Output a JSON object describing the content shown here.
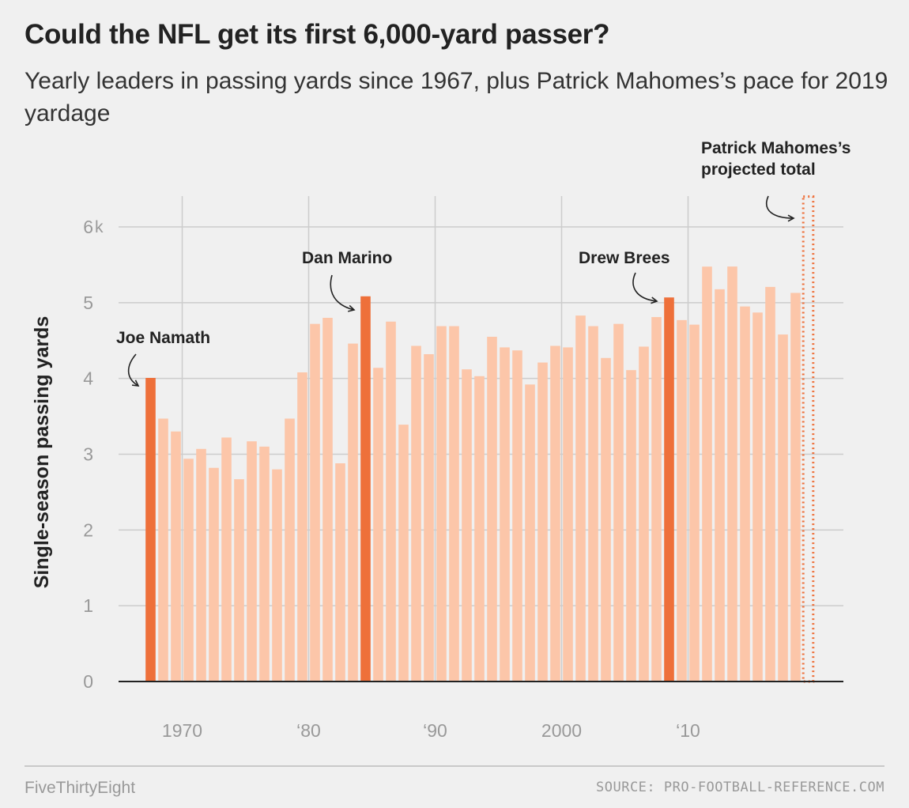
{
  "header": {
    "title": "Could the NFL get its first 6,000-yard passer?",
    "subtitle": "Yearly leaders in passing yards since 1967, plus Patrick Mahomes’s pace for 2019 yardage"
  },
  "footer": {
    "brand": "FiveThirtyEight",
    "source": "SOURCE: PRO-FOOTBALL-REFERENCE.COM"
  },
  "colors": {
    "bar": "#fcc6a9",
    "highlight": "#ee703a",
    "projection": "#ee703a",
    "grid": "#cccccc",
    "axis": "#222222"
  },
  "chart_data": {
    "type": "bar",
    "ylabel": "Single-season passing yards",
    "ylim": [
      0,
      6000
    ],
    "yticks": [
      {
        "value": 0,
        "label": "0"
      },
      {
        "value": 1000,
        "label": "1"
      },
      {
        "value": 2000,
        "label": "2"
      },
      {
        "value": 3000,
        "label": "3"
      },
      {
        "value": 4000,
        "label": "4"
      },
      {
        "value": 5000,
        "label": "5"
      },
      {
        "value": 6000,
        "label": "6"
      }
    ],
    "ytick_unit": "k",
    "xticks": [
      {
        "year": 1970,
        "label": "1970"
      },
      {
        "year": 1980,
        "label": "‘80"
      },
      {
        "year": 1990,
        "label": "‘90"
      },
      {
        "year": 2000,
        "label": "2000"
      },
      {
        "year": 2010,
        "label": "‘10"
      }
    ],
    "x": [
      1967,
      1968,
      1969,
      1970,
      1971,
      1972,
      1973,
      1974,
      1975,
      1976,
      1977,
      1978,
      1979,
      1980,
      1981,
      1982,
      1983,
      1984,
      1985,
      1986,
      1987,
      1988,
      1989,
      1990,
      1991,
      1992,
      1993,
      1994,
      1995,
      1996,
      1997,
      1998,
      1999,
      2000,
      2001,
      2002,
      2003,
      2004,
      2005,
      2006,
      2007,
      2008,
      2009,
      2010,
      2011,
      2012,
      2013,
      2014,
      2015,
      2016,
      2017,
      2018
    ],
    "values": [
      4007,
      3470,
      3300,
      2940,
      3070,
      2820,
      3220,
      2670,
      3170,
      3100,
      2800,
      3470,
      4080,
      4720,
      4800,
      2880,
      4460,
      5084,
      4140,
      4750,
      3390,
      4430,
      4320,
      4690,
      4690,
      4120,
      4030,
      4550,
      4410,
      4370,
      3920,
      4210,
      4430,
      4410,
      4830,
      4690,
      4270,
      4720,
      4110,
      4420,
      4810,
      5069,
      4770,
      4710,
      5476,
      5177,
      5477,
      4950,
      4870,
      5208,
      4580,
      5129
    ],
    "highlighted_years": [
      1967,
      1984,
      2008
    ],
    "projection": {
      "year": 2019,
      "value": 6400
    },
    "annotations": [
      {
        "label": "Joe Namath",
        "year": 1967
      },
      {
        "label": "Dan Marino",
        "year": 1984
      },
      {
        "label": "Drew Brees",
        "year": 2008
      },
      {
        "label_lines": [
          "Patrick Mahomes’s",
          "projected total"
        ],
        "year": 2019
      }
    ]
  }
}
